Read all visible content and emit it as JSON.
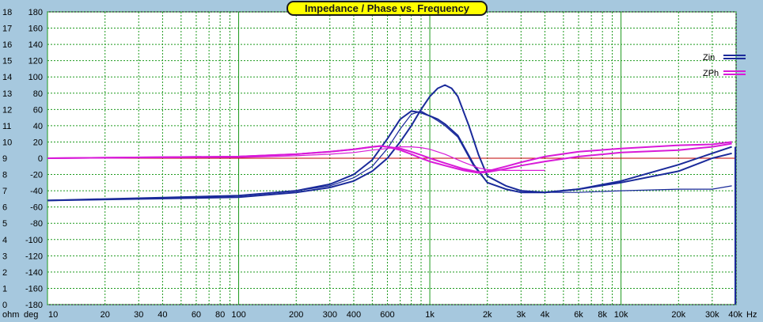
{
  "chart_data": {
    "type": "line",
    "title": "Impedance / Phase vs. Frequency",
    "x_scale": "log",
    "x_range": [
      10,
      40000
    ],
    "x_unit": "Hz",
    "x_ticks": [
      {
        "v": 10,
        "label": "10"
      },
      {
        "v": 20,
        "label": "20"
      },
      {
        "v": 30,
        "label": "30"
      },
      {
        "v": 40,
        "label": "40"
      },
      {
        "v": 60,
        "label": "60"
      },
      {
        "v": 80,
        "label": "80"
      },
      {
        "v": 100,
        "label": "100"
      },
      {
        "v": 200,
        "label": "200"
      },
      {
        "v": 300,
        "label": "300"
      },
      {
        "v": 400,
        "label": "400"
      },
      {
        "v": 600,
        "label": "600"
      },
      {
        "v": 1000,
        "label": "1k"
      },
      {
        "v": 2000,
        "label": "2k"
      },
      {
        "v": 3000,
        "label": "3k"
      },
      {
        "v": 4000,
        "label": "4k"
      },
      {
        "v": 6000,
        "label": "6k"
      },
      {
        "v": 8000,
        "label": "8k"
      },
      {
        "v": 10000,
        "label": "10k"
      },
      {
        "v": 20000,
        "label": "20k"
      },
      {
        "v": 30000,
        "label": "30k"
      },
      {
        "v": 40000,
        "label": "40k"
      }
    ],
    "x_unit_label": "Hz",
    "left_axis": {
      "unit": "ohm",
      "range": [
        0,
        18
      ],
      "ticks": [
        "0",
        "1",
        "2",
        "3",
        "4",
        "5",
        "6",
        "7",
        "8",
        "9",
        "10",
        "11",
        "12",
        "13",
        "14",
        "15",
        "16",
        "17",
        "18"
      ]
    },
    "right_axis": {
      "unit": "deg",
      "range": [
        -180,
        180
      ],
      "ticks": [
        "-180",
        "-160",
        "-140",
        "-120",
        "-100",
        "-80",
        "-60",
        "-40",
        "-20",
        "0",
        "20",
        "40",
        "60",
        "80",
        "100",
        "120",
        "140",
        "160",
        "180"
      ]
    },
    "grid": true,
    "legend_position": "top-right",
    "series": [
      {
        "name": "Zin",
        "axis": "ohm",
        "color": "#1a2a9a",
        "x": [
          10,
          100,
          200,
          300,
          400,
          500,
          600,
          700,
          800,
          900,
          1000,
          1100,
          1200,
          1400,
          1700,
          2000,
          2500,
          3000,
          4000,
          6000,
          10000,
          20000,
          30000,
          38000
        ],
        "y": [
          6.4,
          6.7,
          7.0,
          7.4,
          8.0,
          8.9,
          10.2,
          11.4,
          11.9,
          11.8,
          11.6,
          11.4,
          11.1,
          10.4,
          8.6,
          7.5,
          7.1,
          6.9,
          6.9,
          7.1,
          7.5,
          8.2,
          9.0,
          9.3
        ]
      },
      {
        "name": "Zin",
        "axis": "ohm",
        "color": "#1a2a9a",
        "x": [
          10,
          100,
          200,
          300,
          400,
          500,
          600,
          700,
          800,
          900,
          1000,
          1100,
          1200,
          1300,
          1400,
          1600,
          1800,
          2000,
          2500,
          3000,
          4000,
          6000,
          10000,
          20000,
          30000,
          38000
        ],
        "y": [
          6.4,
          6.6,
          6.9,
          7.2,
          7.6,
          8.2,
          9.0,
          10.0,
          11.0,
          12.0,
          12.8,
          13.3,
          13.5,
          13.3,
          12.8,
          11.0,
          9.2,
          7.9,
          7.3,
          7.0,
          6.9,
          7.1,
          7.6,
          8.6,
          9.3,
          9.7
        ]
      },
      {
        "name": "Zin",
        "axis": "ohm",
        "color": "#1a2a9a",
        "x": [
          10,
          100,
          200,
          300,
          400,
          500,
          600,
          700,
          800,
          900,
          1000,
          1100,
          1200,
          1400,
          1700,
          2000,
          2500,
          3000,
          4000,
          6000,
          10000,
          20000,
          30000,
          38000
        ],
        "y": [
          6.4,
          6.7,
          7.0,
          7.3,
          7.8,
          8.5,
          9.6,
          10.8,
          11.7,
          11.9,
          11.6,
          11.3,
          11.0,
          10.3,
          8.5,
          7.5,
          7.1,
          6.9,
          6.9,
          6.9,
          7.0,
          7.1,
          7.1,
          7.3
        ]
      },
      {
        "name": "ZPh",
        "axis": "deg",
        "color": "#d81ad8",
        "x": [
          10,
          100,
          200,
          300,
          400,
          500,
          550,
          600,
          700,
          800,
          900,
          1000,
          1200,
          1500,
          1800,
          2000,
          2500,
          3000,
          4000,
          6000,
          10000,
          20000,
          30000,
          38000
        ],
        "y": [
          0,
          2,
          5,
          8,
          11,
          14,
          15,
          14,
          10,
          5,
          0,
          -4,
          -9,
          -15,
          -18,
          -17,
          -13,
          -9,
          -4,
          2,
          7,
          10,
          14,
          18
        ]
      },
      {
        "name": "ZPh",
        "axis": "deg",
        "color": "#d81ad8",
        "x": [
          10,
          100,
          200,
          300,
          400,
          500,
          550,
          600,
          700,
          800,
          900,
          1000,
          1200,
          1500,
          1800,
          2000,
          2500,
          3000,
          4000,
          6000,
          10000,
          20000,
          30000,
          38000
        ],
        "y": [
          0,
          2,
          5,
          8,
          11,
          14,
          15,
          14,
          12,
          8,
          4,
          0,
          -6,
          -13,
          -17,
          -16,
          -10,
          -5,
          2,
          8,
          12,
          16,
          17,
          20
        ]
      },
      {
        "name": "ZPh",
        "axis": "deg",
        "color": "#d81ad8",
        "x": [
          10,
          100,
          200,
          300,
          400,
          500,
          600,
          700,
          800,
          900,
          1000,
          1200,
          1500,
          1800,
          2000,
          2500,
          3000,
          4000
        ],
        "y": [
          0,
          1,
          3,
          5,
          7,
          10,
          12,
          14,
          14,
          13,
          11,
          5,
          -5,
          -12,
          -14,
          -15,
          -15,
          -15
        ]
      }
    ]
  }
}
